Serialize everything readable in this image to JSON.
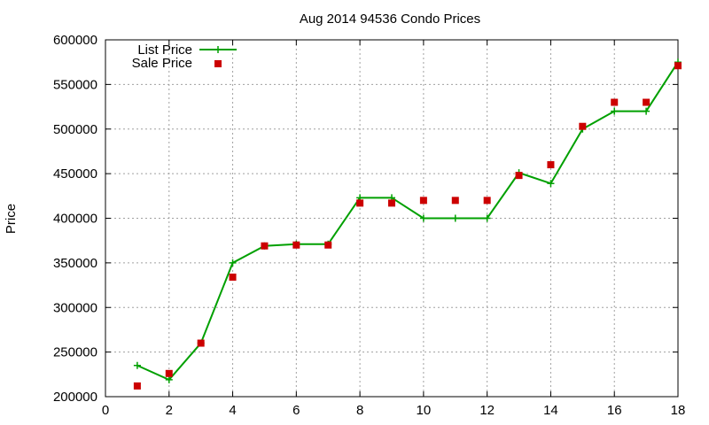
{
  "chart_data": {
    "type": "line",
    "title": "Aug 2014 94536 Condo Prices",
    "xlabel": "",
    "ylabel": "Price",
    "xlim": [
      0,
      18
    ],
    "ylim": [
      200000,
      600000
    ],
    "x_ticks": [
      0,
      2,
      4,
      6,
      8,
      10,
      12,
      14,
      16,
      18
    ],
    "y_ticks": [
      200000,
      250000,
      300000,
      350000,
      400000,
      450000,
      500000,
      550000,
      600000
    ],
    "grid": true,
    "legend_position": "top-left",
    "series": [
      {
        "name": "List Price",
        "style": "line-with-plus-markers",
        "color": "#00a000",
        "x": [
          1,
          2,
          3,
          4,
          5,
          6,
          7,
          8,
          9,
          10,
          11,
          12,
          13,
          14,
          15,
          16,
          17,
          18
        ],
        "y": [
          235000,
          219000,
          260000,
          350000,
          369000,
          371000,
          371000,
          423000,
          423000,
          400000,
          400000,
          400000,
          451000,
          439000,
          500000,
          520000,
          520000,
          575000
        ]
      },
      {
        "name": "Sale Price",
        "style": "square-markers",
        "color": "#cc0000",
        "x": [
          1,
          2,
          3,
          4,
          5,
          6,
          7,
          8,
          9,
          10,
          11,
          12,
          13,
          14,
          15,
          16,
          17,
          18
        ],
        "y": [
          212000,
          226000,
          260000,
          334000,
          369000,
          370000,
          370000,
          417000,
          417000,
          420000,
          420000,
          420000,
          448000,
          460000,
          503000,
          530000,
          530000,
          571000
        ]
      }
    ]
  }
}
